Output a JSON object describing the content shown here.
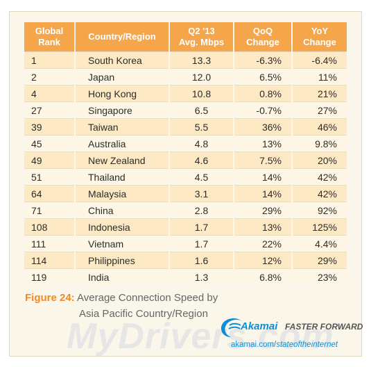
{
  "chart_data": {
    "type": "table",
    "columns": [
      "Global Rank",
      "Country/Region",
      "Q2 '13 Avg. Mbps",
      "QoQ Change",
      "YoY Change"
    ],
    "rows": [
      [
        "1",
        "South Korea",
        "13.3",
        "-6.3%",
        "-6.4%"
      ],
      [
        "2",
        "Japan",
        "12.0",
        "6.5%",
        "11%"
      ],
      [
        "4",
        "Hong Kong",
        "10.8",
        "0.8%",
        "21%"
      ],
      [
        "27",
        "Singapore",
        "6.5",
        "-0.7%",
        "27%"
      ],
      [
        "39",
        "Taiwan",
        "5.5",
        "36%",
        "46%"
      ],
      [
        "45",
        "Australia",
        "4.8",
        "13%",
        "9.8%"
      ],
      [
        "49",
        "New Zealand",
        "4.6",
        "7.5%",
        "20%"
      ],
      [
        "51",
        "Thailand",
        "4.5",
        "14%",
        "42%"
      ],
      [
        "64",
        "Malaysia",
        "3.1",
        "14%",
        "42%"
      ],
      [
        "71",
        "China",
        "2.8",
        "29%",
        "92%"
      ],
      [
        "108",
        "Indonesia",
        "1.7",
        "13%",
        "125%"
      ],
      [
        "111",
        "Vietnam",
        "1.7",
        "22%",
        "4.4%"
      ],
      [
        "114",
        "Philippines",
        "1.6",
        "12%",
        "29%"
      ],
      [
        "119",
        "India",
        "1.3",
        "6.8%",
        "23%"
      ]
    ],
    "header_lines": [
      [
        "Global",
        "Rank"
      ],
      [
        "Country/Region"
      ],
      [
        "Q2 '13",
        "Avg. Mbps"
      ],
      [
        "QoQ",
        "Change"
      ],
      [
        "YoY",
        "Change"
      ]
    ]
  },
  "caption": {
    "figure_label": "Figure 24:",
    "title_line1": "Average Connection Speed by",
    "title_line2": "Asia Pacific Country/Region"
  },
  "branding": {
    "logo_text": "Akamai",
    "tagline": "FASTER FORWARD",
    "url_domain": "akamai.com/",
    "url_path": "stateoftheinternet",
    "watermark": "MyDrivers.com"
  },
  "colors": {
    "header_bg": "#f5a64a",
    "row_odd": "#fde9c4",
    "row_even": "#fef7e6",
    "figure_label": "#f08a24",
    "akamai_blue": "#0a8fd6"
  }
}
